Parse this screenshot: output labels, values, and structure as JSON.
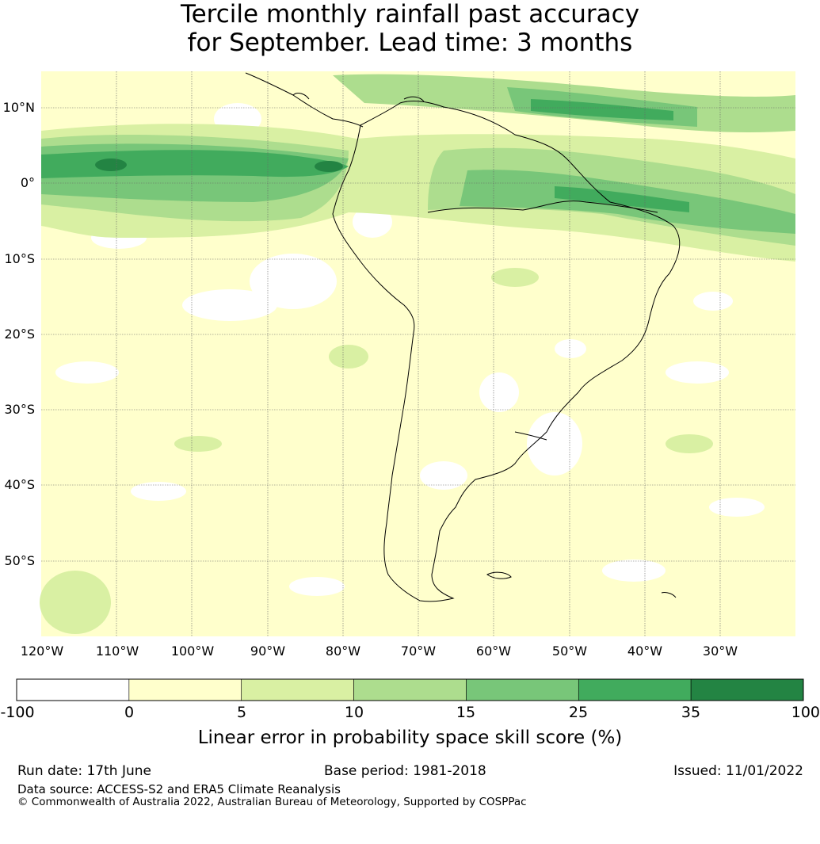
{
  "title": {
    "line1": "Tercile monthly rainfall past accuracy",
    "line2": "for September. Lead time: 3 months"
  },
  "map": {
    "lat_labels": [
      "10°N",
      "0°",
      "10°S",
      "20°S",
      "30°S",
      "40°S",
      "50°S"
    ],
    "lon_labels": [
      "120°W",
      "110°W",
      "100°W",
      "90°W",
      "80°W",
      "70°W",
      "60°W",
      "50°W",
      "40°W",
      "30°W"
    ]
  },
  "colorbar": {
    "ticks": [
      "-100",
      "0",
      "5",
      "10",
      "15",
      "25",
      "35",
      "100"
    ],
    "colors": [
      "#ffffff",
      "#ffffcc",
      "#d9f0a3",
      "#addd8e",
      "#78c679",
      "#41ab5d",
      "#238443"
    ],
    "label": "Linear error in probability space skill score (%)"
  },
  "footer": {
    "run_date": "Run date: 17th June",
    "base_period": "Base period: 1981-2018",
    "issued": "Issued: 11/01/2022",
    "data_source": "Data source: ACCESS-S2 and ERA5 Climate Reanalysis",
    "copyright": "© Commonwealth of Australia 2022, Australian Bureau of Meteorology, Supported by COSPPac"
  }
}
